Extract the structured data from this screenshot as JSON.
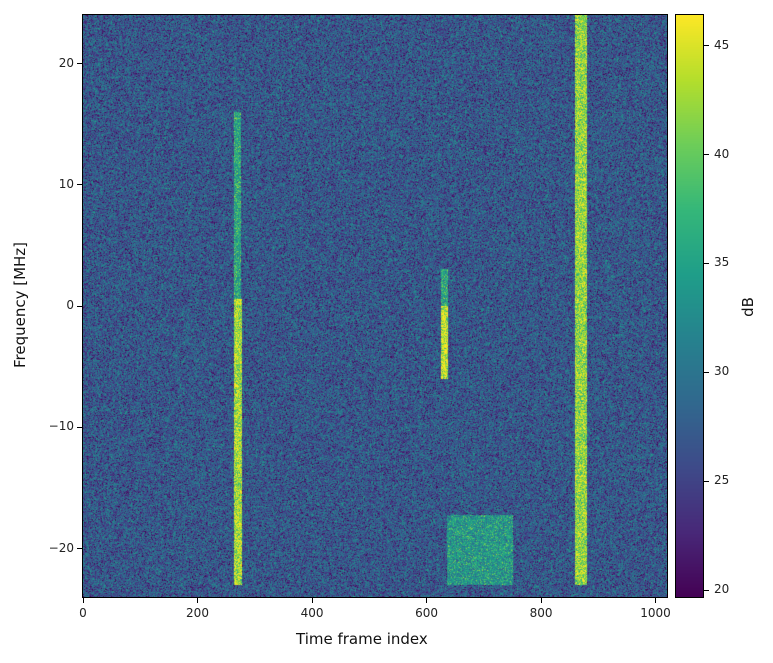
{
  "chart_data": {
    "type": "heatmap",
    "title": "",
    "xlabel": "Time frame index",
    "ylabel": "Frequency [MHz]",
    "xlim": [
      0,
      1020
    ],
    "ylim": [
      -24,
      24
    ],
    "xticks": [
      "0",
      "200",
      "400",
      "600",
      "800",
      "1000"
    ],
    "yticks": [
      "20",
      "10",
      "0",
      "−10",
      "−20"
    ],
    "colormap": "viridis",
    "colorbar": {
      "label": "dB",
      "range": [
        19.7,
        46.4
      ],
      "ticks": [
        "20",
        "25",
        "30",
        "35",
        "40",
        "45"
      ]
    },
    "background_level_db": 27,
    "features": [
      {
        "name": "vertical-burst-1",
        "x": [
          265,
          275
        ],
        "y": [
          0.5,
          16
        ],
        "level_db": 36
      },
      {
        "name": "vertical-burst-1-strong",
        "x": [
          265,
          276
        ],
        "y": [
          -23,
          0.5
        ],
        "level_db": 43
      },
      {
        "name": "vertical-burst-2-weak",
        "x": [
          627,
          637
        ],
        "y": [
          0,
          3
        ],
        "level_db": 36
      },
      {
        "name": "vertical-burst-2",
        "x": [
          627,
          637
        ],
        "y": [
          -6,
          0
        ],
        "level_db": 44
      },
      {
        "name": "vertical-burst-3",
        "x": [
          860,
          880
        ],
        "y": [
          -23,
          24
        ],
        "level_db": 42
      },
      {
        "name": "wideband-block",
        "x": [
          637,
          750
        ],
        "y": [
          -23,
          -17.3
        ],
        "level_db": 34
      }
    ]
  }
}
